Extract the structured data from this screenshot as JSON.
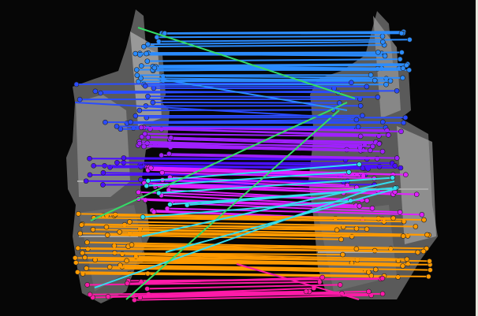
{
  "scene": {
    "subject": "",
    "background_color": "#000000"
  },
  "panes": [
    {
      "name": "left-image"
    },
    {
      "name": "right-image"
    }
  ],
  "palette": {
    "green": "#33dd66",
    "cyan": "#33ddee",
    "sky": "#2b8cff",
    "blue": "#2a4cff",
    "violet": "#4a10ff",
    "purple": "#a020ff",
    "magenta": "#e020ff",
    "pink": "#ff1aa8",
    "orange": "#ff9a00"
  }
}
